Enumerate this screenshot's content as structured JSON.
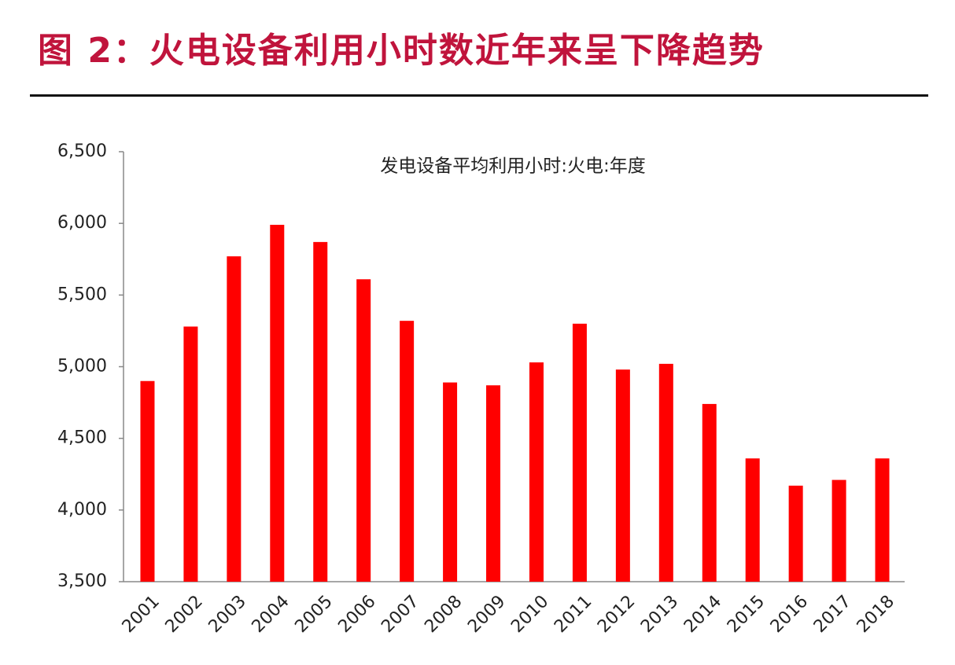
{
  "heading": "图 2：火电设备利用小时数近年来呈下降趋势",
  "chart_data": {
    "type": "bar",
    "title": "发电设备平均利用小时:火电:年度",
    "categories": [
      "2001",
      "2002",
      "2003",
      "2004",
      "2005",
      "2006",
      "2007",
      "2008",
      "2009",
      "2010",
      "2011",
      "2012",
      "2013",
      "2014",
      "2015",
      "2016",
      "2017",
      "2018"
    ],
    "values": [
      4900,
      5280,
      5770,
      5990,
      5870,
      5610,
      5320,
      4890,
      4870,
      5030,
      5300,
      4980,
      5020,
      4740,
      4360,
      4170,
      4210,
      4360
    ],
    "color": "#ff0000",
    "ylim": [
      3500,
      6500
    ],
    "yticks": [
      {
        "value": 3500,
        "label": "3,500"
      },
      {
        "value": 4000,
        "label": "4,000"
      },
      {
        "value": 4500,
        "label": "4,500"
      },
      {
        "value": 5000,
        "label": "5,000"
      },
      {
        "value": 5500,
        "label": "5,500"
      },
      {
        "value": 6000,
        "label": "6,000"
      },
      {
        "value": 6500,
        "label": "6,500"
      }
    ],
    "grid": false
  }
}
